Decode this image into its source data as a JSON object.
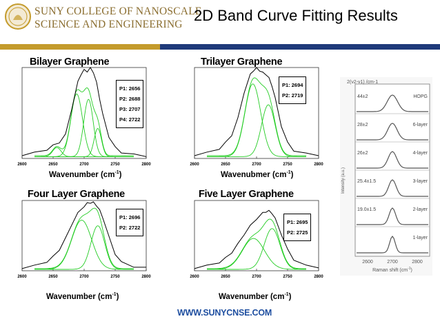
{
  "header": {
    "brand_line1": "SUNY COLLEGE OF NANOSCALE",
    "brand_line2": "SCIENCE AND ENGINEERING",
    "slide_title": "2D Band Curve Fitting  Results",
    "url": "WWW.SUNYCNSE.COM"
  },
  "colors": {
    "gold": "#c49b2c",
    "navy": "#1f3a7a",
    "fit_curve": "#22cc22",
    "measured_curve": "#000000"
  },
  "panels": [
    {
      "title": "Bilayer Graphene",
      "xlabel": "Wavenumber (cm",
      "xlabel_sup": "-1",
      "xlabel_end": ")",
      "peaks_text": [
        "P1: 2656",
        "P2: 2688",
        "P3: 2707",
        "P4: 2722"
      ]
    },
    {
      "title": "Trilayer Graphene",
      "xlabel": "Wavenubmer (cm",
      "xlabel_sup": "-1",
      "xlabel_end": ")",
      "peaks_text": [
        "P1: 2694",
        "P2: 2719"
      ]
    },
    {
      "title": "Four Layer Graphene",
      "xlabel": "Wavenumber (cm",
      "xlabel_sup": "-1",
      "xlabel_end": ")",
      "peaks_text": [
        "P1: 2696",
        "P2: 2722"
      ]
    },
    {
      "title": "Five Layer Graphene",
      "xlabel": "Wavenumber (cm",
      "xlabel_sup": "-1",
      "xlabel_end": ")",
      "peaks_text": [
        "P1: 2695",
        "P2: 2725"
      ]
    }
  ],
  "inset": {
    "title": "2(ν2-ν1) /cm-1",
    "ylabel": "Intensity (a.u.)",
    "xlabel": "Raman shift (cm",
    "xlabel_sup": "-1",
    "xlabel_end": ")",
    "xticks": [
      "2600",
      "2700",
      "2800"
    ],
    "rows": [
      {
        "left": "44±2",
        "right": "HOPG"
      },
      {
        "left": "28±2",
        "right": "6-layer"
      },
      {
        "left": "26±2",
        "right": "4-layer"
      },
      {
        "left": "25.4±1.5",
        "right": "3-layer"
      },
      {
        "left": "19.0±1.5",
        "right": "2-layer"
      },
      {
        "left": "",
        "right": "1-layer"
      }
    ]
  },
  "chart_data": [
    {
      "type": "line",
      "title": "Bilayer Graphene",
      "xlabel": "Wavenumber (cm-1)",
      "ylabel": "",
      "xlim": [
        2600,
        2800
      ],
      "xticks": [
        2600,
        2650,
        2700,
        2750,
        2800
      ],
      "series": [
        {
          "kind": "measured",
          "x": [
            2600,
            2620,
            2640,
            2650,
            2660,
            2670,
            2680,
            2690,
            2695,
            2700,
            2705,
            2710,
            2715,
            2720,
            2725,
            2730,
            2740,
            2750,
            2760,
            2780,
            2800
          ],
          "values": [
            0.04,
            0.06,
            0.1,
            0.14,
            0.18,
            0.26,
            0.55,
            0.84,
            0.93,
            0.97,
            0.96,
            0.99,
            0.95,
            0.83,
            0.66,
            0.48,
            0.24,
            0.12,
            0.07,
            0.04,
            0.03
          ]
        },
        {
          "kind": "fit",
          "center": 2656,
          "amplitude": 0.1,
          "width": 16
        },
        {
          "kind": "fit",
          "center": 2688,
          "amplitude": 0.69,
          "width": 22
        },
        {
          "kind": "fit",
          "center": 2707,
          "amplitude": 0.63,
          "width": 18
        },
        {
          "kind": "fit",
          "center": 2722,
          "amplitude": 0.31,
          "width": 14
        },
        {
          "kind": "envelope"
        }
      ]
    },
    {
      "type": "line",
      "title": "Trilayer Graphene",
      "xlabel": "Wavenubmer (cm-1)",
      "ylabel": "",
      "xlim": [
        2600,
        2800
      ],
      "xticks": [
        2600,
        2650,
        2700,
        2750,
        2800
      ],
      "series": [
        {
          "kind": "measured",
          "x": [
            2600,
            2620,
            2640,
            2650,
            2660,
            2670,
            2680,
            2690,
            2695,
            2700,
            2705,
            2710,
            2715,
            2720,
            2725,
            2730,
            2740,
            2750,
            2760,
            2780,
            2800
          ],
          "values": [
            0.04,
            0.06,
            0.11,
            0.17,
            0.26,
            0.44,
            0.73,
            0.92,
            0.97,
            0.99,
            0.97,
            0.94,
            0.93,
            0.88,
            0.8,
            0.66,
            0.36,
            0.17,
            0.09,
            0.05,
            0.04
          ]
        },
        {
          "kind": "fit",
          "center": 2694,
          "amplitude": 0.8,
          "width": 30
        },
        {
          "kind": "fit",
          "center": 2719,
          "amplitude": 0.57,
          "width": 26
        },
        {
          "kind": "envelope"
        }
      ]
    },
    {
      "type": "line",
      "title": "Four Layer Graphene",
      "xlabel": "Wavenumber (cm-1)",
      "ylabel": "",
      "xlim": [
        2600,
        2800
      ],
      "xticks": [
        2600,
        2650,
        2700,
        2750,
        2800
      ],
      "series": [
        {
          "kind": "measured",
          "x": [
            2600,
            2620,
            2640,
            2650,
            2660,
            2670,
            2680,
            2690,
            2700,
            2705,
            2710,
            2715,
            2720,
            2725,
            2730,
            2740,
            2750,
            2760,
            2780,
            2800
          ],
          "values": [
            0.04,
            0.07,
            0.13,
            0.2,
            0.3,
            0.46,
            0.66,
            0.82,
            0.92,
            0.96,
            0.97,
            0.97,
            0.93,
            0.86,
            0.76,
            0.48,
            0.24,
            0.12,
            0.06,
            0.04
          ]
        },
        {
          "kind": "fit",
          "center": 2696,
          "amplitude": 0.7,
          "width": 38
        },
        {
          "kind": "fit",
          "center": 2722,
          "amplitude": 0.62,
          "width": 26
        },
        {
          "kind": "envelope"
        }
      ]
    },
    {
      "type": "line",
      "title": "Five Layer Graphene",
      "xlabel": "Wavenumber (cm-1)",
      "ylabel": "",
      "xlim": [
        2600,
        2800
      ],
      "xticks": [
        2600,
        2650,
        2700,
        2750,
        2800
      ],
      "series": [
        {
          "kind": "measured",
          "x": [
            2600,
            2620,
            2640,
            2650,
            2660,
            2670,
            2680,
            2690,
            2700,
            2710,
            2715,
            2720,
            2725,
            2730,
            2740,
            2750,
            2760,
            2780,
            2800
          ],
          "values": [
            0.04,
            0.07,
            0.12,
            0.18,
            0.26,
            0.38,
            0.52,
            0.64,
            0.74,
            0.82,
            0.84,
            0.85,
            0.82,
            0.74,
            0.52,
            0.3,
            0.16,
            0.07,
            0.05
          ]
        },
        {
          "kind": "fit",
          "center": 2695,
          "amplitude": 0.44,
          "width": 42
        },
        {
          "kind": "fit",
          "center": 2725,
          "amplitude": 0.58,
          "width": 30
        },
        {
          "kind": "envelope"
        }
      ]
    }
  ]
}
